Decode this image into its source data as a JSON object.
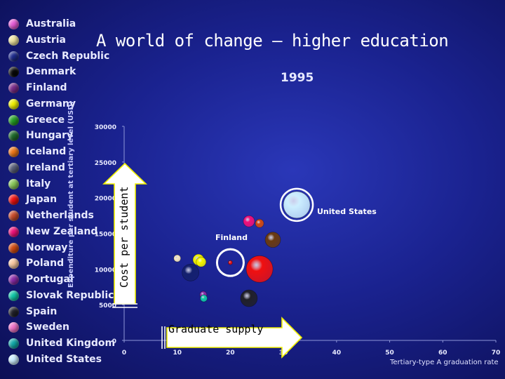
{
  "chart_data": {
    "type": "scatter",
    "title": "A world of change – higher education",
    "subtitle": "1995",
    "xlabel": "Tertiary-type A graduation rate",
    "ylabel": "Expenditure per student at tertiary level (USD)",
    "xlim": [
      0,
      70
    ],
    "ylim": [
      0,
      30000
    ],
    "x_ticks": [
      "0",
      "10",
      "20",
      "30",
      "40",
      "50",
      "60",
      "70"
    ],
    "y_ticks": [
      "0",
      "5000",
      "10000",
      "15000",
      "20000",
      "25000",
      "30000"
    ],
    "legend_position": "left",
    "legend": [
      {
        "name": "Australia",
        "color": "#e65ad6"
      },
      {
        "name": "Austria",
        "color": "#f0e6a0"
      },
      {
        "name": "Czech Republic",
        "color": "#1c2a8c"
      },
      {
        "name": "Denmark",
        "color": "#080808"
      },
      {
        "name": "Finland",
        "color": "#7a2a8a"
      },
      {
        "name": "Germany",
        "color": "#f2f200"
      },
      {
        "name": "Greece",
        "color": "#24a024"
      },
      {
        "name": "Hungary",
        "color": "#1e6a2a"
      },
      {
        "name": "Iceland",
        "color": "#f07818"
      },
      {
        "name": "Ireland",
        "color": "#585e78"
      },
      {
        "name": "Italy",
        "color": "#88c858"
      },
      {
        "name": "Japan",
        "color": "#f01010"
      },
      {
        "name": "Netherlands",
        "color": "#c84a2a"
      },
      {
        "name": "New Zealand",
        "color": "#f0107a"
      },
      {
        "name": "Norway",
        "color": "#d24a10"
      },
      {
        "name": "Poland",
        "color": "#f8c8a0"
      },
      {
        "name": "Portugal",
        "color": "#8a2aa8"
      },
      {
        "name": "Slovak Republic",
        "color": "#10c8a8"
      },
      {
        "name": "Spain",
        "color": "#202028"
      },
      {
        "name": "Sweden",
        "color": "#f070c8"
      },
      {
        "name": "United Kingdom",
        "color": "#10a8a8"
      },
      {
        "name": "United States",
        "color": "#cceeff"
      }
    ],
    "points": [
      {
        "x": 10,
        "y": 11500,
        "size": 5,
        "color": "#f8e8c0"
      },
      {
        "x": 12.5,
        "y": 9500,
        "size": 12,
        "color": "#14206e"
      },
      {
        "x": 14,
        "y": 11300,
        "size": 8,
        "color": "#f2f200"
      },
      {
        "x": 14.5,
        "y": 11000,
        "size": 7,
        "color": "#f2f200"
      },
      {
        "x": 14.9,
        "y": 6400,
        "size": 5,
        "color": "#8a2aa8"
      },
      {
        "x": 15,
        "y": 5900,
        "size": 5,
        "color": "#10c8a8"
      },
      {
        "x": 20,
        "y": 10900,
        "size": 3,
        "color": "#e01010"
      },
      {
        "x": 23.5,
        "y": 5900,
        "size": 12,
        "color": "#202028"
      },
      {
        "x": 23.5,
        "y": 16700,
        "size": 8,
        "color": "#f0107a"
      },
      {
        "x": 25.5,
        "y": 16400,
        "size": 6,
        "color": "#d24a10"
      },
      {
        "x": 25.5,
        "y": 10000,
        "size": 19,
        "color": "#f01010"
      },
      {
        "x": 28,
        "y": 14100,
        "size": 11,
        "color": "#6a3a10"
      },
      {
        "x": 32.5,
        "y": 19000,
        "size": 19,
        "color": "#cceeff"
      }
    ],
    "annotations": [
      "United States",
      "Finland",
      "Cost per student",
      "Graduate supply"
    ]
  }
}
